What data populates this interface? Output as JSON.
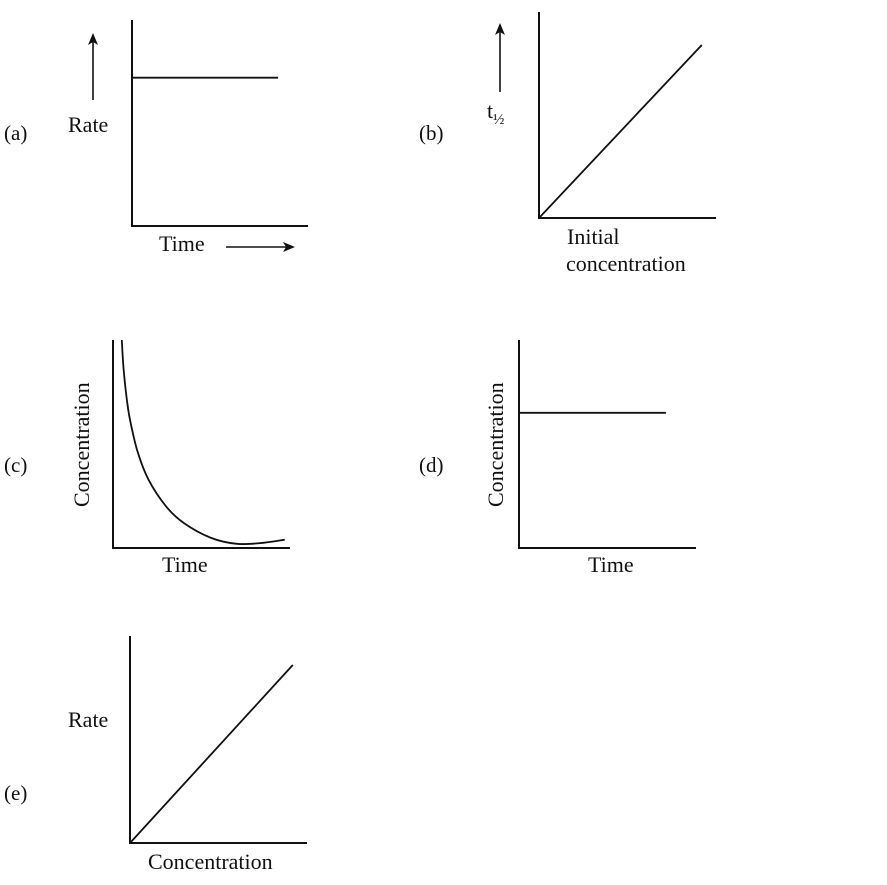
{
  "colors": {
    "background": "#ffffff",
    "ink": "#111111"
  },
  "chart_data": [
    {
      "panel_label": "(a)",
      "type": "line",
      "xlabel": "Time",
      "ylabel": "Rate",
      "xlim": [
        0,
        1
      ],
      "ylim": [
        0,
        1
      ],
      "x": [
        0,
        0.83
      ],
      "values": [
        0.72,
        0.72
      ],
      "grid": false,
      "axis_arrows": [
        "x",
        "y"
      ]
    },
    {
      "panel_label": "(b)",
      "type": "line",
      "xlabel": "Initial concentration",
      "xlabel_lines": [
        "Initial",
        "concentration"
      ],
      "ylabel": "t½",
      "ylabel_main": "t",
      "ylabel_sub": "½",
      "xlim": [
        0,
        1
      ],
      "ylim": [
        0,
        1
      ],
      "x": [
        0,
        0.92
      ],
      "values": [
        0,
        0.84
      ],
      "grid": false,
      "axis_arrows": [
        "y"
      ]
    },
    {
      "panel_label": "(c)",
      "type": "line",
      "xlabel": "Time",
      "ylabel": "Concentration",
      "xlim": [
        0,
        1
      ],
      "ylim": [
        0,
        1
      ],
      "curve": "exponential-decay",
      "x": [
        0.05,
        0.06,
        0.08,
        0.1,
        0.14,
        0.2,
        0.3,
        0.4,
        0.55,
        0.7,
        0.85,
        0.97
      ],
      "values": [
        1.0,
        0.86,
        0.7,
        0.6,
        0.46,
        0.33,
        0.2,
        0.12,
        0.05,
        0.02,
        0.025,
        0.04
      ],
      "grid": false
    },
    {
      "panel_label": "(d)",
      "type": "line",
      "xlabel": "Time",
      "ylabel": "Concentration",
      "xlim": [
        0,
        1
      ],
      "ylim": [
        0,
        1
      ],
      "x": [
        0,
        0.83
      ],
      "values": [
        0.65,
        0.65
      ],
      "grid": false
    },
    {
      "panel_label": "(e)",
      "type": "line",
      "xlabel": "Concentration",
      "ylabel": "Rate",
      "xlim": [
        0,
        1
      ],
      "ylim": [
        0,
        1
      ],
      "x": [
        0,
        0.92
      ],
      "values": [
        0,
        0.86
      ],
      "grid": false
    }
  ]
}
